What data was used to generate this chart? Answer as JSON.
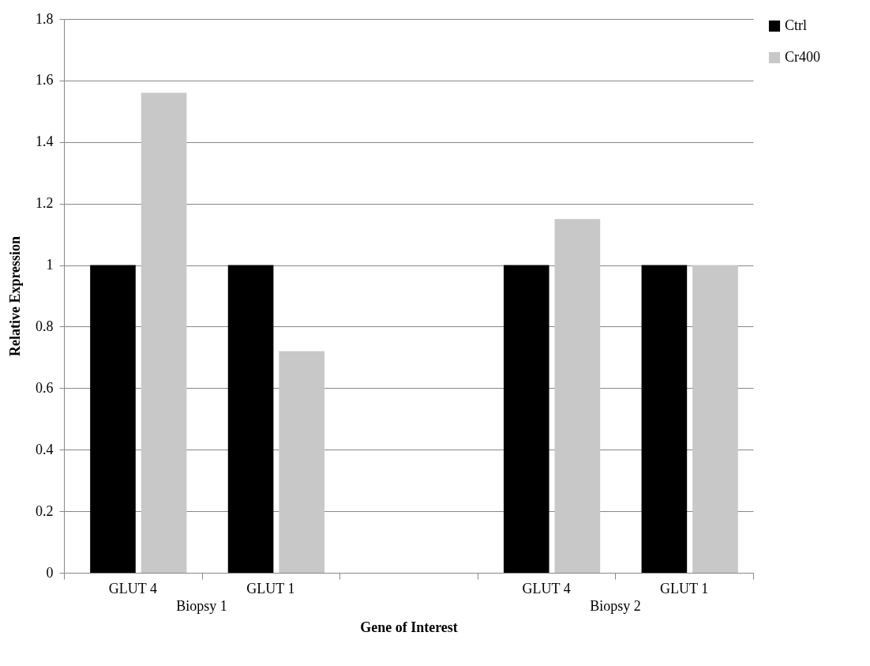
{
  "chart_data": {
    "type": "bar",
    "xlabel": "Gene of Interest",
    "ylabel": "Relative Expression",
    "categories": [
      "GLUT 4",
      "GLUT 1",
      null,
      "GLUT 4",
      "GLUT 1"
    ],
    "series": [
      {
        "name": "Ctrl",
        "color": "#000000",
        "values": [
          1,
          1,
          null,
          1,
          1
        ]
      },
      {
        "name": "Cr400",
        "color": "#c8c8c8",
        "values": [
          1.56,
          0.72,
          null,
          1.15,
          1.0
        ]
      }
    ],
    "annotations": [
      "Biopsy 1",
      "Biopsy 2"
    ],
    "ylim": [
      0,
      1.8
    ],
    "yticks": [
      0,
      0.2,
      0.4,
      0.6,
      0.8,
      1,
      1.2,
      1.4,
      1.6,
      1.8
    ],
    "grid": "y",
    "legend": "right"
  }
}
